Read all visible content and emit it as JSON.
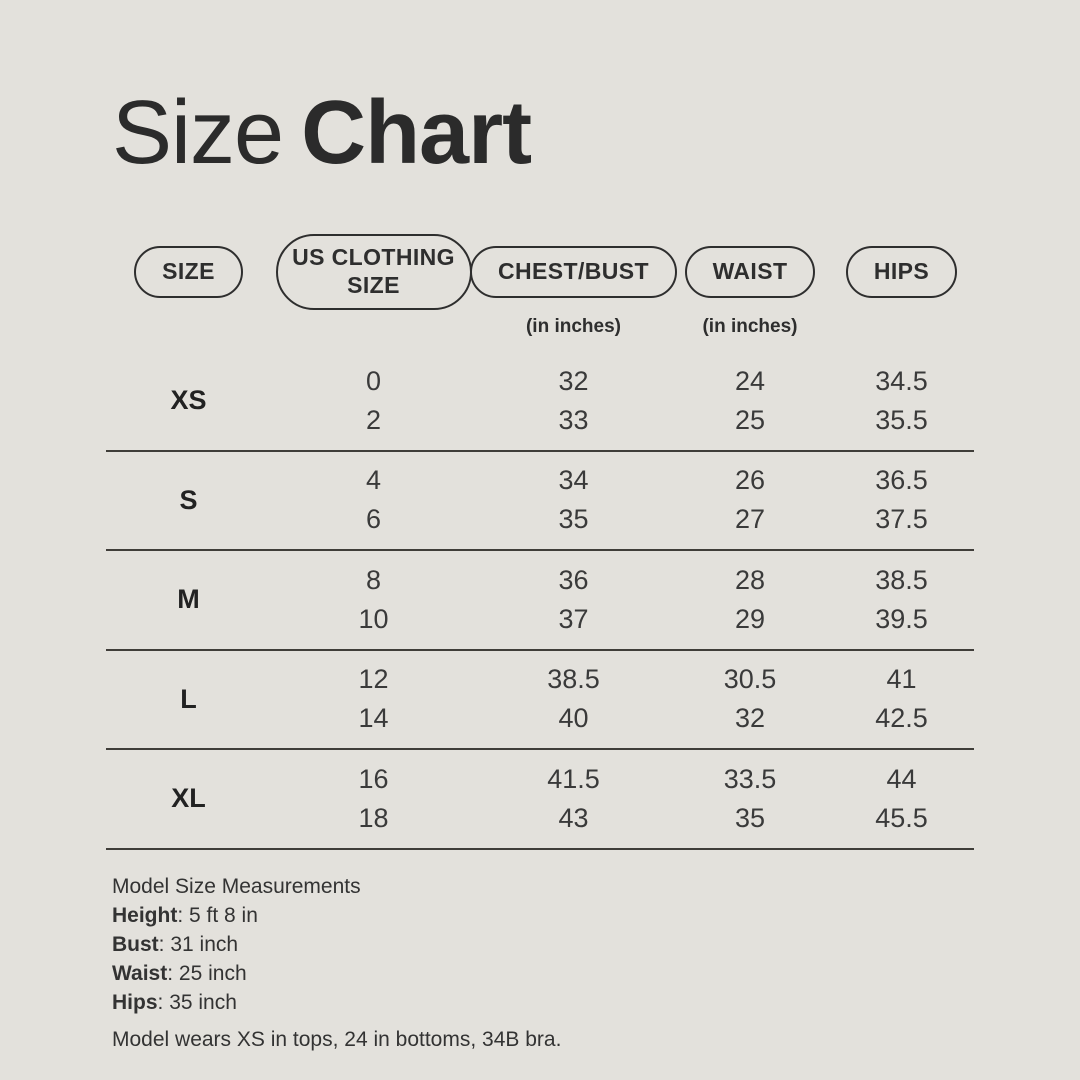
{
  "colors": {
    "background": "#e3e1dc",
    "text": "#2e2e2e",
    "divider": "#3f3d39"
  },
  "title": {
    "regular": "Size",
    "bold": "Chart"
  },
  "table": {
    "columns": [
      {
        "label": "SIZE",
        "sublabel": ""
      },
      {
        "label": "US CLOTHING SIZE",
        "sublabel": ""
      },
      {
        "label": "CHEST/BUST",
        "sublabel": "(in inches)"
      },
      {
        "label": "WAIST",
        "sublabel": "(in inches)"
      },
      {
        "label": "HIPS",
        "sublabel": ""
      }
    ],
    "rows": [
      {
        "size": "XS",
        "us": [
          "0",
          "2"
        ],
        "chest": [
          "32",
          "33"
        ],
        "waist": [
          "24",
          "25"
        ],
        "hips": [
          "34.5",
          "35.5"
        ]
      },
      {
        "size": "S",
        "us": [
          "4",
          "6"
        ],
        "chest": [
          "34",
          "35"
        ],
        "waist": [
          "26",
          "27"
        ],
        "hips": [
          "36.5",
          "37.5"
        ]
      },
      {
        "size": "M",
        "us": [
          "8",
          "10"
        ],
        "chest": [
          "36",
          "37"
        ],
        "waist": [
          "28",
          "29"
        ],
        "hips": [
          "38.5",
          "39.5"
        ]
      },
      {
        "size": "L",
        "us": [
          "12",
          "14"
        ],
        "chest": [
          "38.5",
          "40"
        ],
        "waist": [
          "30.5",
          "32"
        ],
        "hips": [
          "41",
          "42.5"
        ]
      },
      {
        "size": "XL",
        "us": [
          "16",
          "18"
        ],
        "chest": [
          "41.5",
          "43"
        ],
        "waist": [
          "33.5",
          "35"
        ],
        "hips": [
          "44",
          "45.5"
        ]
      }
    ]
  },
  "footer": {
    "heading": "Model Size Measurements",
    "separator": ": ",
    "measurements": [
      {
        "label": "Height",
        "value": "5 ft 8 in"
      },
      {
        "label": "Bust",
        "value": "31 inch"
      },
      {
        "label": "Waist",
        "value": "25 inch"
      },
      {
        "label": "Hips",
        "value": "35 inch"
      }
    ],
    "note": "Model wears XS in tops, 24 in bottoms, 34B bra."
  }
}
